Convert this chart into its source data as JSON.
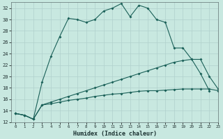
{
  "xlabel": "Humidex (Indice chaleur)",
  "bg_color": "#c8e8e0",
  "grid_color": "#b0d0cc",
  "line_color": "#1a6058",
  "xlim": [
    -0.5,
    23
  ],
  "ylim": [
    12,
    33
  ],
  "xticks": [
    0,
    1,
    2,
    3,
    4,
    5,
    6,
    7,
    8,
    9,
    10,
    11,
    12,
    13,
    14,
    15,
    16,
    17,
    18,
    19,
    20,
    21,
    22,
    23
  ],
  "yticks": [
    12,
    14,
    16,
    18,
    20,
    22,
    24,
    26,
    28,
    30,
    32
  ],
  "line1_x": [
    0,
    1,
    2,
    3,
    4,
    5,
    6,
    7,
    8,
    9,
    10,
    11,
    12,
    13,
    14,
    15,
    16,
    17,
    18,
    19,
    20,
    21,
    22
  ],
  "line1_y": [
    13.5,
    13.2,
    12.5,
    19.0,
    23.5,
    27.0,
    30.2,
    30.0,
    29.5,
    30.0,
    31.5,
    32.0,
    32.8,
    30.5,
    32.5,
    32.0,
    30.0,
    29.5,
    25.0,
    25.0,
    23.0,
    20.5,
    17.5
  ],
  "line2_x": [
    0,
    1,
    2,
    3,
    4,
    5,
    6,
    7,
    8,
    9,
    10,
    11,
    12,
    13,
    14,
    15,
    16,
    17,
    18,
    19,
    20,
    21,
    22,
    23
  ],
  "line2_y": [
    13.5,
    13.2,
    12.5,
    15.0,
    15.5,
    16.0,
    16.5,
    17.0,
    17.5,
    18.0,
    18.5,
    19.0,
    19.5,
    20.0,
    20.5,
    21.0,
    21.5,
    22.0,
    22.5,
    22.8,
    23.0,
    23.0,
    20.0,
    17.8
  ],
  "line3_x": [
    0,
    1,
    2,
    3,
    4,
    5,
    6,
    7,
    8,
    9,
    10,
    11,
    12,
    13,
    14,
    15,
    16,
    17,
    18,
    19,
    20,
    21,
    22,
    23
  ],
  "line3_y": [
    13.5,
    13.2,
    12.5,
    15.0,
    15.2,
    15.5,
    15.8,
    16.0,
    16.2,
    16.5,
    16.7,
    16.9,
    17.0,
    17.2,
    17.4,
    17.5,
    17.5,
    17.6,
    17.7,
    17.8,
    17.8,
    17.8,
    17.8,
    17.5
  ]
}
